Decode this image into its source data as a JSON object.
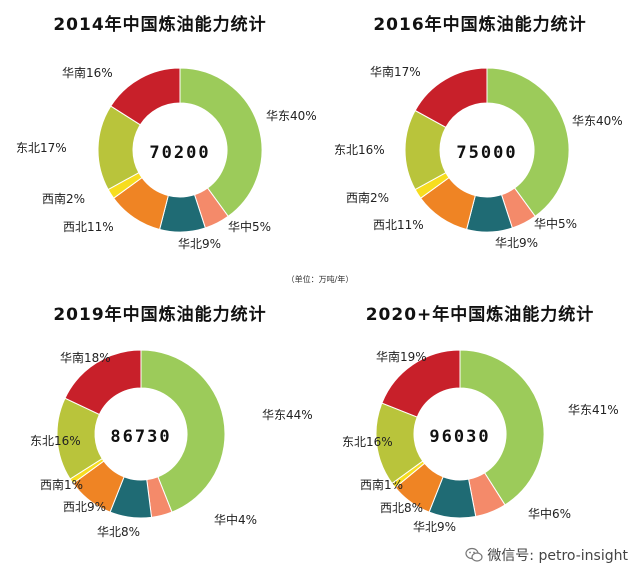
{
  "unit_note": "（单位：万吨/年）",
  "watermark": {
    "text": "微信号: petro-insight",
    "icon": "wechat-icon"
  },
  "chart_data": [
    {
      "type": "pie",
      "title": "2014年中国炼油能力统计",
      "total": "70200",
      "slices": [
        {
          "name": "华东",
          "value": 40,
          "label": "华东40%",
          "color": "#9ccb5a"
        },
        {
          "name": "华中",
          "value": 5,
          "label": "华中5%",
          "color": "#f48a6a"
        },
        {
          "name": "华北",
          "value": 9,
          "label": "华北9%",
          "color": "#1f6b74"
        },
        {
          "name": "西北",
          "value": 11,
          "label": "西北11%",
          "color": "#ef8424"
        },
        {
          "name": "西南",
          "value": 2,
          "label": "西南2%",
          "color": "#f7dd1f"
        },
        {
          "name": "东北",
          "value": 17,
          "label": "东北17%",
          "color": "#b9c43b"
        },
        {
          "name": "华南",
          "value": 16,
          "label": "华南16%",
          "color": "#c8202a"
        }
      ]
    },
    {
      "type": "pie",
      "title": "2016年中国炼油能力统计",
      "total": "75000",
      "slices": [
        {
          "name": "华东",
          "value": 40,
          "label": "华东40%",
          "color": "#9ccb5a"
        },
        {
          "name": "华中",
          "value": 5,
          "label": "华中5%",
          "color": "#f48a6a"
        },
        {
          "name": "华北",
          "value": 9,
          "label": "华北9%",
          "color": "#1f6b74"
        },
        {
          "name": "西北",
          "value": 11,
          "label": "西北11%",
          "color": "#ef8424"
        },
        {
          "name": "西南",
          "value": 2,
          "label": "西南2%",
          "color": "#f7dd1f"
        },
        {
          "name": "东北",
          "value": 16,
          "label": "东北16%",
          "color": "#b9c43b"
        },
        {
          "name": "华南",
          "value": 17,
          "label": "华南17%",
          "color": "#c8202a"
        }
      ]
    },
    {
      "type": "pie",
      "title": "2019年中国炼油能力统计",
      "total": "86730",
      "slices": [
        {
          "name": "华东",
          "value": 44,
          "label": "华东44%",
          "color": "#9ccb5a"
        },
        {
          "name": "华中",
          "value": 4,
          "label": "华中4%",
          "color": "#f48a6a"
        },
        {
          "name": "华北",
          "value": 8,
          "label": "华北8%",
          "color": "#1f6b74"
        },
        {
          "name": "西北",
          "value": 9,
          "label": "西北9%",
          "color": "#ef8424"
        },
        {
          "name": "西南",
          "value": 1,
          "label": "西南1%",
          "color": "#f7dd1f"
        },
        {
          "name": "东北",
          "value": 16,
          "label": "东北16%",
          "color": "#b9c43b"
        },
        {
          "name": "华南",
          "value": 18,
          "label": "华南18%",
          "color": "#c8202a"
        }
      ]
    },
    {
      "type": "pie",
      "title": "2020+年中国炼油能力统计",
      "total": "96030",
      "slices": [
        {
          "name": "华东",
          "value": 41,
          "label": "华东41%",
          "color": "#9ccb5a"
        },
        {
          "name": "华中",
          "value": 6,
          "label": "华中6%",
          "color": "#f48a6a"
        },
        {
          "name": "华北",
          "value": 9,
          "label": "华北9%",
          "color": "#1f6b74"
        },
        {
          "name": "西北",
          "value": 8,
          "label": "西北8%",
          "color": "#ef8424"
        },
        {
          "name": "西南",
          "value": 1,
          "label": "西南1%",
          "color": "#f7dd1f"
        },
        {
          "name": "东北",
          "value": 16,
          "label": "东北16%",
          "color": "#b9c43b"
        },
        {
          "name": "华南",
          "value": 19,
          "label": "华南19%",
          "color": "#c8202a"
        }
      ]
    }
  ]
}
